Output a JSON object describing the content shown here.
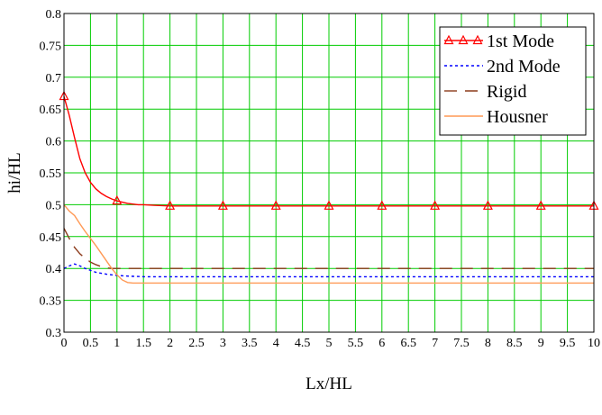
{
  "chart_data": {
    "type": "line",
    "title": "",
    "xlabel": "Lx/HL",
    "ylabel": "hi/HL",
    "xlim": [
      0,
      10
    ],
    "ylim": [
      0.3,
      0.8
    ],
    "x_ticks": [
      0,
      0.5,
      1,
      1.5,
      2,
      2.5,
      3,
      3.5,
      4,
      4.5,
      5,
      5.5,
      6,
      6.5,
      7,
      7.5,
      8,
      8.5,
      9,
      9.5,
      10
    ],
    "x_tick_labels": [
      "0",
      "0.5",
      "1",
      "1.5",
      "2",
      "2.5",
      "3",
      "3.5",
      "4",
      "4.5",
      "5",
      "5.5",
      "6",
      "6.5",
      "7",
      "7.5",
      "8",
      "8.5",
      "9",
      "9.5",
      "10"
    ],
    "y_ticks": [
      0.3,
      0.35,
      0.4,
      0.45,
      0.5,
      0.55,
      0.6,
      0.65,
      0.7,
      0.75,
      0.8
    ],
    "y_tick_labels": [
      "0.3",
      "0.35",
      "0.4",
      "0.45",
      "0.5",
      "0.55",
      "0.6",
      "0.65",
      "0.7",
      "0.75",
      "0.8"
    ],
    "grid": true,
    "grid_color": "#00cc00",
    "legend_position": "top-right",
    "series": [
      {
        "name": "1st Mode",
        "color": "#ff0000",
        "line": "solid",
        "marker": "triangle",
        "x": [
          0,
          0.1,
          0.2,
          0.3,
          0.4,
          0.5,
          0.6,
          0.7,
          0.8,
          0.9,
          1.0,
          1.1,
          1.2,
          1.3,
          1.4,
          1.5,
          1.7,
          2,
          3,
          4,
          5,
          6,
          7,
          8,
          9,
          10
        ],
        "y": [
          0.67,
          0.64,
          0.605,
          0.572,
          0.55,
          0.535,
          0.525,
          0.518,
          0.513,
          0.509,
          0.506,
          0.504,
          0.502,
          0.501,
          0.5,
          0.5,
          0.499,
          0.498,
          0.498,
          0.498,
          0.498,
          0.498,
          0.498,
          0.498,
          0.498,
          0.498
        ],
        "marker_x": [
          0,
          1,
          2,
          3,
          4,
          5,
          6,
          7,
          8,
          9,
          10
        ],
        "marker_y": [
          0.67,
          0.506,
          0.498,
          0.498,
          0.498,
          0.498,
          0.498,
          0.498,
          0.498,
          0.498,
          0.498
        ]
      },
      {
        "name": "2nd Mode",
        "color": "#0000ff",
        "line": "dotted",
        "x": [
          0,
          0.1,
          0.2,
          0.3,
          0.4,
          0.5,
          0.6,
          0.8,
          1.0,
          1.2,
          1.5,
          2,
          3,
          4,
          5,
          6,
          7,
          8,
          9,
          10
        ],
        "y": [
          0.4,
          0.404,
          0.407,
          0.404,
          0.4,
          0.397,
          0.394,
          0.391,
          0.389,
          0.388,
          0.387,
          0.387,
          0.387,
          0.387,
          0.387,
          0.387,
          0.387,
          0.387,
          0.387,
          0.387
        ]
      },
      {
        "name": "Rigid",
        "color": "#8b3a1a",
        "line": "dashed",
        "x": [
          0,
          0.1,
          0.2,
          0.3,
          0.4,
          0.5,
          0.6,
          0.7,
          0.8,
          0.9,
          1.0,
          1.2,
          1.5,
          2,
          3,
          4,
          5,
          6,
          7,
          8,
          9,
          10
        ],
        "y": [
          0.463,
          0.447,
          0.433,
          0.423,
          0.416,
          0.41,
          0.406,
          0.403,
          0.401,
          0.4,
          0.4,
          0.4,
          0.4,
          0.4,
          0.4,
          0.4,
          0.4,
          0.4,
          0.4,
          0.4,
          0.4,
          0.4
        ]
      },
      {
        "name": "Housner",
        "color": "#ff9955",
        "line": "solid",
        "x": [
          0,
          0.1,
          0.2,
          0.3,
          0.4,
          0.5,
          0.6,
          0.7,
          0.8,
          0.9,
          1.0,
          1.1,
          1.2,
          1.3,
          1.5,
          2,
          3,
          4,
          5,
          6,
          7,
          8,
          9,
          10
        ],
        "y": [
          0.5,
          0.49,
          0.483,
          0.47,
          0.458,
          0.447,
          0.436,
          0.424,
          0.412,
          0.4,
          0.39,
          0.382,
          0.378,
          0.377,
          0.377,
          0.377,
          0.377,
          0.377,
          0.377,
          0.377,
          0.377,
          0.377,
          0.377,
          0.377
        ]
      }
    ]
  }
}
